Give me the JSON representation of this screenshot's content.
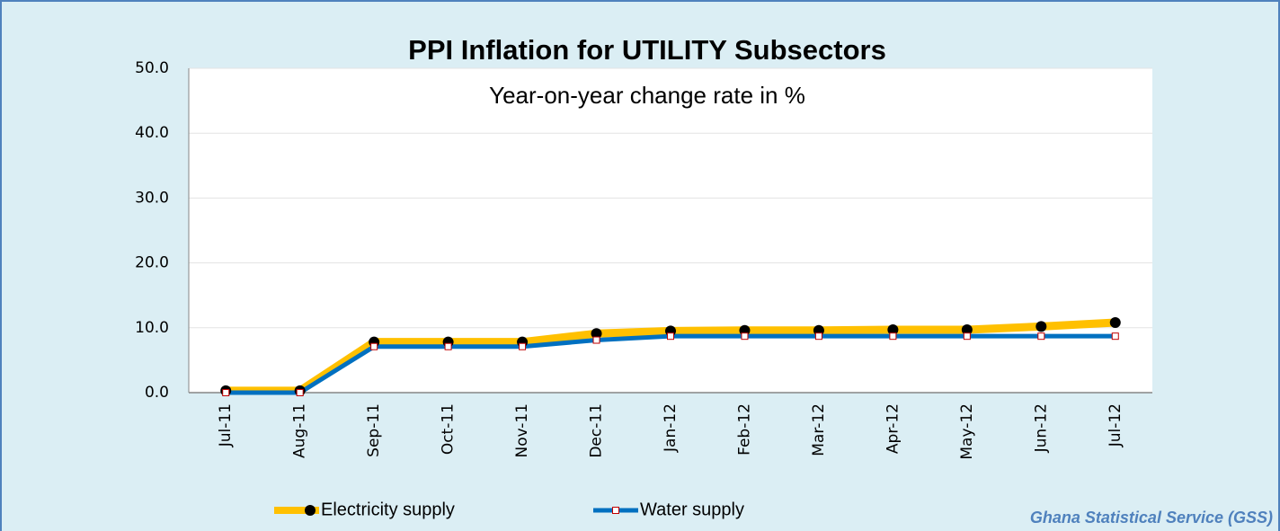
{
  "chart_data": {
    "type": "line",
    "title": "PPI Inflation for UTILITY Subsectors",
    "subtitle": "Year-on-year change rate in %",
    "source": "Ghana Statistical Service (GSS)",
    "categories": [
      "Jul-11",
      "Aug-11",
      "Sep-11",
      "Oct-11",
      "Nov-11",
      "Dec-11",
      "Jan-12",
      "Feb-12",
      "Mar-12",
      "Apr-12",
      "May-12",
      "Jun-12",
      "Jul-12"
    ],
    "series": [
      {
        "name": "Electricity supply",
        "color": "#ffc000",
        "marker_color": "#000000",
        "values": [
          0.3,
          0.3,
          7.8,
          7.8,
          7.8,
          9.1,
          9.5,
          9.6,
          9.6,
          9.7,
          9.7,
          10.2,
          10.8
        ]
      },
      {
        "name": "Water supply",
        "color": "#0070c0",
        "marker_color": "#c00000",
        "values": [
          0.0,
          0.0,
          7.1,
          7.1,
          7.1,
          8.1,
          8.7,
          8.7,
          8.7,
          8.7,
          8.7,
          8.7,
          8.7
        ]
      }
    ],
    "ylim": [
      0,
      50
    ],
    "yticks": [
      {
        "value": 0,
        "label": "0.0"
      },
      {
        "value": 10,
        "label": "10.0"
      },
      {
        "value": 20,
        "label": "20.0"
      },
      {
        "value": 30,
        "label": "30.0"
      },
      {
        "value": 40,
        "label": "40.0"
      },
      {
        "value": 50,
        "label": "50.0"
      }
    ],
    "grid": true,
    "legend": "bottom"
  }
}
